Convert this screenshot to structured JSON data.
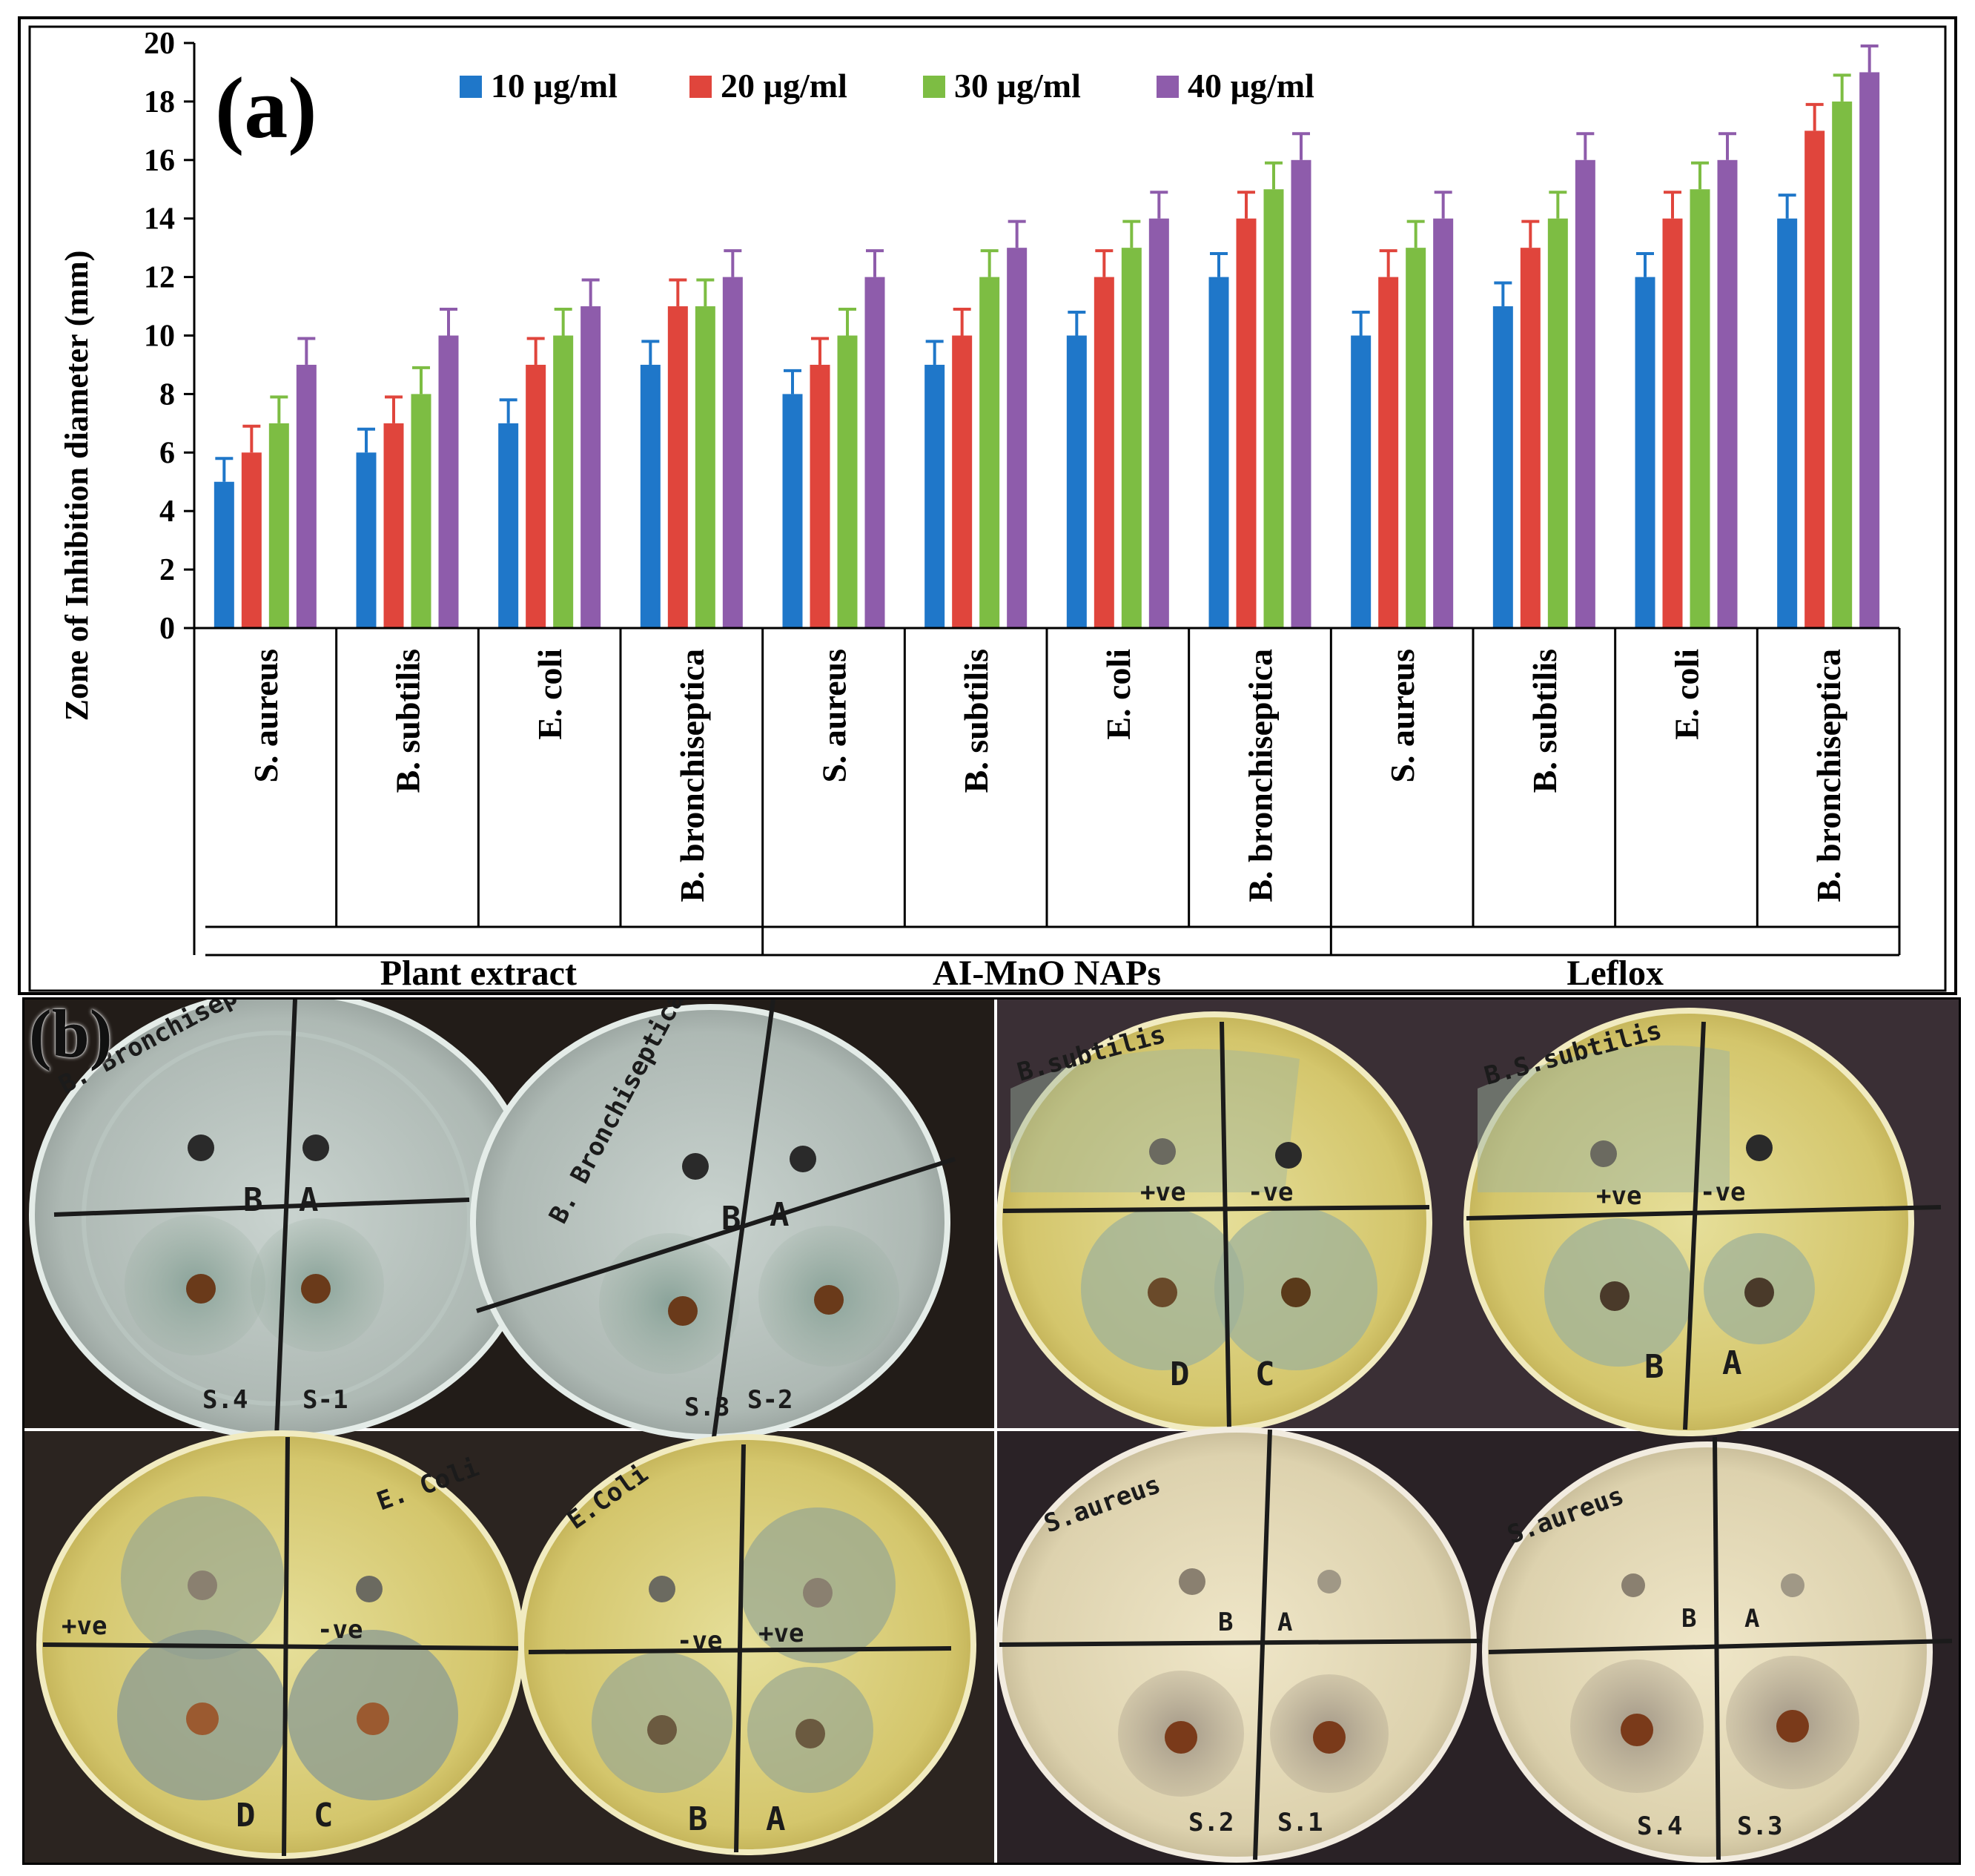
{
  "panel_a_label": "(a)",
  "panel_b_label": "(b)",
  "colors": {
    "s10": "#1f77c9",
    "s20": "#e0453c",
    "s30": "#7dbd43",
    "s40": "#8e5cab"
  },
  "chart_data": {
    "type": "bar",
    "ylabel": "Zone of Inhibition diameter (mm)",
    "ylim": [
      0,
      20
    ],
    "yticks": [
      "0",
      "2",
      "4",
      "6",
      "8",
      "10",
      "12",
      "14",
      "16",
      "18",
      "20"
    ],
    "legend_position": "top",
    "categories": [
      "S. aureus",
      "B. subtilis",
      "E. coli",
      "B. bronchiseptica",
      "S. aureus",
      "B. subtilis",
      "E. coli",
      "B. bronchiseptica",
      "S. aureus",
      "B. subtilis",
      "E. coli",
      "B. bronchiseptica"
    ],
    "groups": [
      {
        "name": "Plant extract",
        "span": 4
      },
      {
        "name": "AI-MnO NAPs",
        "span": 4
      },
      {
        "name": "Leflox",
        "span": 4
      }
    ],
    "series": [
      {
        "name": "10 µg/ml",
        "values": [
          5,
          6,
          7,
          9,
          8,
          9,
          10,
          12,
          10,
          11,
          12,
          14
        ],
        "error": 0.8
      },
      {
        "name": "20 µg/ml",
        "values": [
          6,
          7,
          9,
          11,
          9,
          10,
          12,
          14,
          12,
          13,
          14,
          17
        ],
        "error": 0.9
      },
      {
        "name": "30 µg/ml",
        "values": [
          7,
          8,
          10,
          11,
          10,
          12,
          13,
          15,
          13,
          14,
          15,
          18
        ],
        "error": 0.9
      },
      {
        "name": "40 µg/ml",
        "values": [
          9,
          10,
          11,
          12,
          12,
          13,
          14,
          16,
          14,
          16,
          16,
          19
        ],
        "error": 0.9
      }
    ]
  },
  "plates": {
    "p1": {
      "title": "B. Bronchiseptica",
      "q1": "B",
      "q2": "A",
      "q3": "S.4",
      "q4": "S-1"
    },
    "p2": {
      "title": "B. Bronchiseptica",
      "q1": "B",
      "q2": "A",
      "q3": "S.3",
      "q4": "S-2"
    },
    "p3": {
      "title": "B.subtilis",
      "q1": "+ve",
      "q2": "-ve",
      "q3": "D",
      "q4": "C"
    },
    "p4": {
      "title": "B.S.subtilis",
      "q1": "+ve",
      "q2": "-ve",
      "q3": "B",
      "q4": "A"
    },
    "p5": {
      "title": "E. Coli",
      "q1": "+ve",
      "q2": "-ve",
      "q3": "D",
      "q4": "C"
    },
    "p6": {
      "title": "E.Coli",
      "q1": "-ve",
      "q2": "+ve",
      "q3": "B",
      "q4": "A"
    },
    "p7": {
      "title": "S.aureus",
      "q1": "B",
      "q2": "A",
      "q3": "S.2",
      "q4": "S.1"
    },
    "p8": {
      "title": "S.aureus",
      "q1": "B",
      "q2": "A",
      "q3": "S.4",
      "q4": "S.3"
    }
  }
}
